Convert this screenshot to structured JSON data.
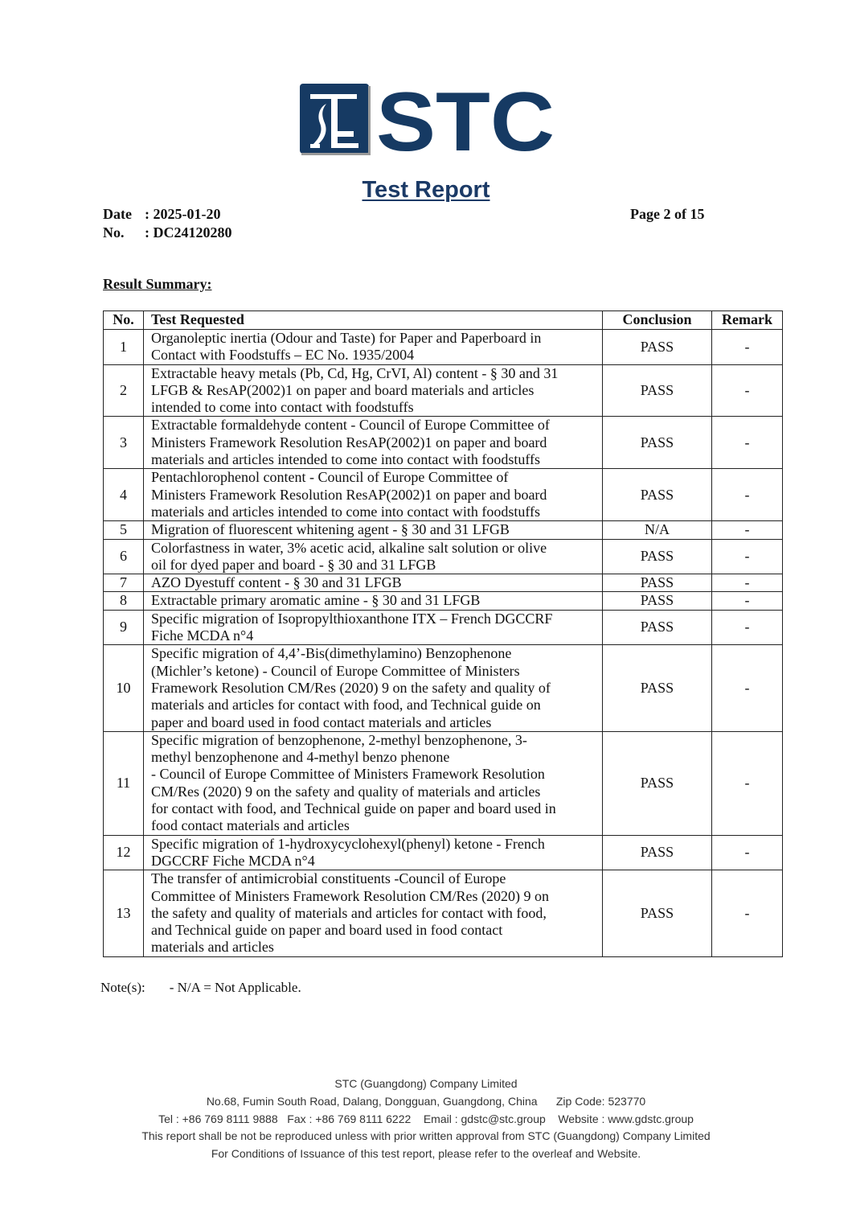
{
  "logo": {
    "text": "STC",
    "color": "#163a63"
  },
  "header": {
    "title": "Test Report",
    "date_label": "Date",
    "date_value": ": 2025-01-20",
    "no_label": "No.",
    "no_value": ": DC24120280",
    "page": "Page 2 of 15"
  },
  "summary_heading": "Result Summary:",
  "table": {
    "headers": [
      "No.",
      "Test Requested",
      "Conclusion",
      "Remark"
    ],
    "rows": [
      {
        "no": "1",
        "test": "Organoleptic inertia (Odour and Taste) for Paper and Paperboard in\nContact with Foodstuffs – EC No. 1935/2004",
        "conclusion": "PASS",
        "remark": "-"
      },
      {
        "no": "2",
        "test": "Extractable heavy metals (Pb, Cd, Hg, CrVI, Al) content - § 30 and 31\nLFGB & ResAP(2002)1 on paper and board materials and articles\nintended to come into contact with foodstuffs",
        "conclusion": "PASS",
        "remark": "-"
      },
      {
        "no": "3",
        "test": "Extractable formaldehyde content - Council of Europe Committee of\nMinisters Framework Resolution ResAP(2002)1 on paper and board\nmaterials and articles intended to come into contact with foodstuffs",
        "conclusion": "PASS",
        "remark": "-"
      },
      {
        "no": "4",
        "test": "Pentachlorophenol content - Council of Europe Committee of\nMinisters Framework Resolution ResAP(2002)1 on paper and board\nmaterials and articles intended to come into contact with foodstuffs",
        "conclusion": "PASS",
        "remark": "-"
      },
      {
        "no": "5",
        "test": "Migration of fluorescent whitening agent - § 30 and 31 LFGB",
        "conclusion": "N/A",
        "remark": "-"
      },
      {
        "no": "6",
        "test": "Colorfastness in water, 3% acetic acid, alkaline salt solution or olive\noil for dyed paper and board - § 30 and 31 LFGB",
        "conclusion": "PASS",
        "remark": "-"
      },
      {
        "no": "7",
        "test": "AZO Dyestuff content - § 30 and 31 LFGB",
        "conclusion": "PASS",
        "remark": "-"
      },
      {
        "no": "8",
        "test": "Extractable primary aromatic amine - § 30 and 31 LFGB",
        "conclusion": "PASS",
        "remark": "-"
      },
      {
        "no": "9",
        "test": "Specific migration of Isopropylthioxanthone ITX – French DGCCRF\nFiche MCDA n°4",
        "conclusion": "PASS",
        "remark": "-"
      },
      {
        "no": "10",
        "test": "Specific migration of 4,4’-Bis(dimethylamino) Benzophenone\n(Michler’s ketone) - Council of Europe Committee of Ministers\nFramework Resolution CM/Res (2020) 9 on the safety and quality of\nmaterials and articles for contact with food, and Technical guide on\npaper and board used in food contact materials and articles",
        "conclusion": "PASS",
        "remark": "-"
      },
      {
        "no": "11",
        "test": "Specific migration of benzophenone, 2-methyl benzophenone, 3-\nmethyl benzophenone and 4-methyl benzo phenone\n- Council of Europe Committee of Ministers Framework Resolution\nCM/Res (2020) 9 on the safety and quality of materials and articles\nfor contact with food, and Technical guide on paper and board used in\nfood contact materials and articles",
        "conclusion": "PASS",
        "remark": "-"
      },
      {
        "no": "12",
        "test": "Specific migration of 1-hydroxycyclohexyl(phenyl) ketone - French\nDGCCRF Fiche MCDA n°4",
        "conclusion": "PASS",
        "remark": "-"
      },
      {
        "no": "13",
        "test": "The transfer of antimicrobial constituents -Council of Europe\nCommittee of Ministers Framework Resolution CM/Res (2020) 9 on\nthe safety and quality of materials and articles for contact with food,\nand Technical guide on paper and board used in food contact\nmaterials and articles",
        "conclusion": "PASS",
        "remark": "-"
      }
    ]
  },
  "notes": {
    "label": "Note(s):",
    "text": "- N/A = Not Applicable."
  },
  "footer": {
    "company": "STC (Guangdong) Company Limited",
    "address": "No.68, Fumin South Road, Dalang, Dongguan, Guangdong, China      Zip Code: 523770",
    "contact": "Tel : +86 769 8111 9888   Fax : +86 769 8111 6222    Email : gdstc@stc.group    Website : www.gdstc.group",
    "disclaimer": "This report shall be not be reproduced unless with prior written approval from STC (Guangdong) Company Limited",
    "conditions": "For Conditions of Issuance of this test report, please refer to the overleaf and Website."
  }
}
